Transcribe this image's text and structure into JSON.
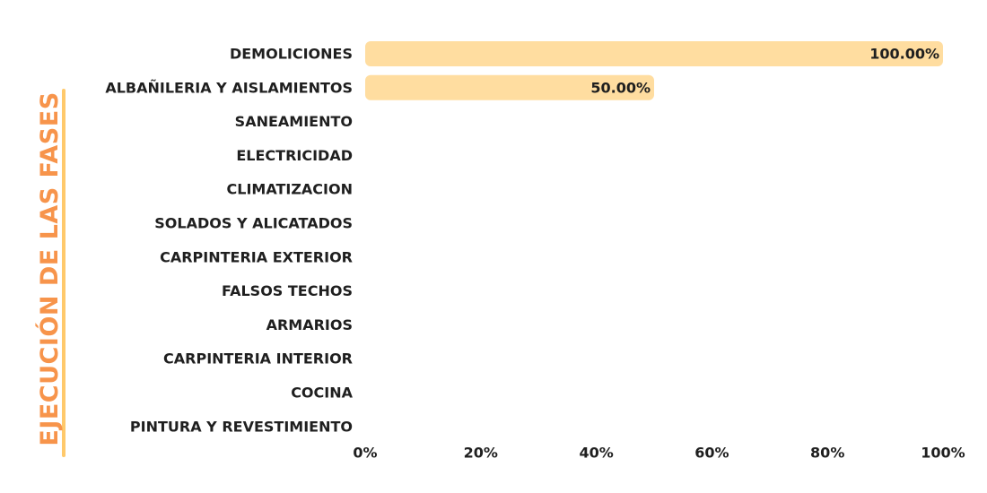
{
  "chart_data": {
    "type": "bar",
    "orientation": "horizontal",
    "title": "EJECUCIÓN DE LAS FASES",
    "categories": [
      "DEMOLICIONES",
      "ALBAÑILERIA Y AISLAMIENTOS",
      "SANEAMIENTO",
      "ELECTRICIDAD",
      "CLIMATIZACION",
      "SOLADOS Y ALICATADOS",
      "CARPINTERIA EXTERIOR",
      "FALSOS TECHOS",
      "ARMARIOS",
      "CARPINTERIA INTERIOR",
      "COCINA",
      "PINTURA Y REVESTIMIENTO"
    ],
    "values": [
      100,
      50,
      0,
      0,
      0,
      0,
      0,
      0,
      0,
      0,
      0,
      0
    ],
    "value_labels": [
      "100.00%",
      "50.00%",
      "",
      "",
      "",
      "",
      "",
      "",
      "",
      "",
      "",
      ""
    ],
    "xlim": [
      0,
      100
    ],
    "xticks": [
      "0%",
      "20%",
      "40%",
      "60%",
      "80%",
      "100%"
    ],
    "grid": false,
    "legend": "none"
  },
  "colors": {
    "bar": "#FFDDA0",
    "title": "#F7944B",
    "title_rule": "#FFC96B",
    "text": "#1F1F1F"
  }
}
